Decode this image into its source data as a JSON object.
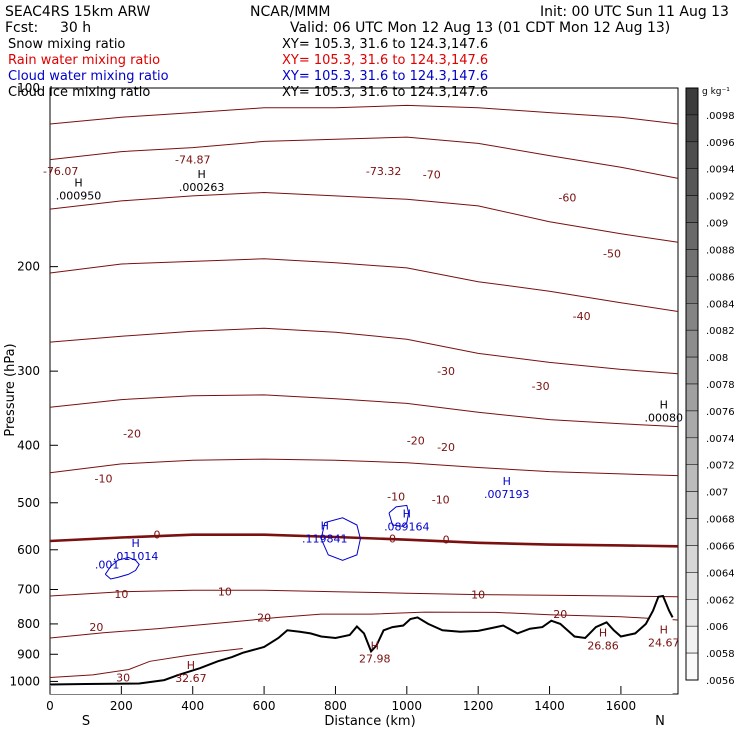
{
  "header": {
    "model": "SEAC4RS 15km ARW",
    "org": "NCAR/MMM",
    "init": "Init: 00 UTC Sun 11 Aug 13",
    "fcst_label": "Fcst:",
    "fcst_value": "30 h",
    "valid": "Valid: 06 UTC Mon 12 Aug 13 (01 CDT Mon 12 Aug 13)"
  },
  "fields": [
    {
      "label": "Snow mixing ratio",
      "xy": "XY= 105.3, 31.6 to 124.3,147.6",
      "color": "#000000"
    },
    {
      "label": "Rain water mixing ratio",
      "xy": "XY= 105.3, 31.6 to 124.3,147.6",
      "color": "#e00000"
    },
    {
      "label": "Cloud water mixing ratio",
      "xy": "XY= 105.3, 31.6 to 124.3,147.6",
      "color": "#0000cc"
    },
    {
      "label": "Cloud ice mixing ratio",
      "xy": "XY= 105.3, 31.6 to 124.3,147.6",
      "color": "#000000"
    }
  ],
  "colors": {
    "temperature": "#7a1010",
    "cloud_water": "#0000cc",
    "terrain": "#000000"
  },
  "chart_data": {
    "type": "line",
    "xlabel": "Distance (km)",
    "ylabel": "Pressure (hPa)",
    "xlim": [
      0,
      1760
    ],
    "ylim": [
      1050,
      100
    ],
    "x_ticks": [
      0,
      200,
      400,
      600,
      800,
      1000,
      1200,
      1400,
      1600
    ],
    "y_ticks": [
      100,
      200,
      300,
      400,
      500,
      600,
      700,
      800,
      900,
      1000
    ],
    "y_tick_labels": [
      "100",
      "200",
      "300",
      "400",
      "500",
      "600",
      "700",
      "800",
      "900",
      "1000"
    ],
    "endpoints": {
      "left": "S",
      "right": "N"
    },
    "colorbar": {
      "unit": "g kg⁻¹",
      "levels": [
        0.0098,
        0.0096,
        0.0094,
        0.0092,
        0.009,
        0.0088,
        0.0086,
        0.0084,
        0.0082,
        0.008,
        0.0078,
        0.0076,
        0.0074,
        0.0072,
        0.007,
        0.0068,
        0.0066,
        0.0064,
        0.0062,
        0.006,
        0.0058,
        0.0056
      ],
      "labels": [
        ".0098",
        ".0096",
        ".0094",
        ".0092",
        ".009",
        ".0088",
        ".0086",
        ".0084",
        ".0082",
        ".008",
        ".0078",
        ".0076",
        ".0074",
        ".0072",
        ".007",
        ".0068",
        ".0066",
        ".0064",
        ".0062",
        ".006",
        ".0058",
        ".0056"
      ],
      "labeled": [
        ".0098",
        ".0096",
        ".0094",
        ".0092",
        ".009",
        ".0088",
        ".0086",
        ".0084",
        ".0082",
        ".008",
        ".0078",
        ".0076",
        ".0074",
        ".0072",
        ".007",
        ".0068",
        ".0066",
        ".0064",
        ".0062",
        ".006",
        ".0058",
        ".0056"
      ]
    },
    "terrain": [
      [
        0,
        1012
      ],
      [
        100,
        1010
      ],
      [
        250,
        1008
      ],
      [
        320,
        995
      ],
      [
        360,
        975
      ],
      [
        420,
        950
      ],
      [
        470,
        925
      ],
      [
        510,
        910
      ],
      [
        540,
        895
      ],
      [
        600,
        875
      ],
      [
        640,
        845
      ],
      [
        665,
        820
      ],
      [
        700,
        825
      ],
      [
        730,
        830
      ],
      [
        760,
        840
      ],
      [
        800,
        845
      ],
      [
        840,
        835
      ],
      [
        860,
        808
      ],
      [
        880,
        830
      ],
      [
        900,
        890
      ],
      [
        915,
        870
      ],
      [
        935,
        820
      ],
      [
        960,
        810
      ],
      [
        990,
        805
      ],
      [
        1010,
        785
      ],
      [
        1030,
        780
      ],
      [
        1060,
        800
      ],
      [
        1100,
        820
      ],
      [
        1150,
        825
      ],
      [
        1200,
        822
      ],
      [
        1250,
        810
      ],
      [
        1270,
        805
      ],
      [
        1310,
        830
      ],
      [
        1345,
        815
      ],
      [
        1380,
        810
      ],
      [
        1405,
        790
      ],
      [
        1430,
        800
      ],
      [
        1470,
        840
      ],
      [
        1500,
        845
      ],
      [
        1530,
        810
      ],
      [
        1560,
        795
      ],
      [
        1580,
        820
      ],
      [
        1600,
        840
      ],
      [
        1640,
        830
      ],
      [
        1660,
        810
      ],
      [
        1670,
        800
      ],
      [
        1690,
        760
      ],
      [
        1705,
        720
      ],
      [
        1718,
        718
      ],
      [
        1735,
        760
      ],
      [
        1745,
        780
      ]
    ],
    "temperature_isotherms": [
      {
        "label": "-70",
        "points": [
          [
            0,
            115
          ],
          [
            200,
            112
          ],
          [
            400,
            110
          ],
          [
            600,
            108
          ],
          [
            800,
            108
          ],
          [
            1000,
            107
          ],
          [
            1200,
            108
          ],
          [
            1400,
            110
          ],
          [
            1600,
            112
          ],
          [
            1760,
            115
          ]
        ]
      },
      {
        "label": "-60",
        "points": [
          [
            0,
            132
          ],
          [
            200,
            128
          ],
          [
            400,
            126
          ],
          [
            600,
            123
          ],
          [
            800,
            122
          ],
          [
            1000,
            121
          ],
          [
            1200,
            124
          ],
          [
            1400,
            130
          ],
          [
            1600,
            136
          ],
          [
            1760,
            142
          ]
        ]
      },
      {
        "label": "-50",
        "points": [
          [
            0,
            160
          ],
          [
            200,
            155
          ],
          [
            400,
            152
          ],
          [
            600,
            150
          ],
          [
            800,
            152
          ],
          [
            1000,
            154
          ],
          [
            1200,
            158
          ],
          [
            1400,
            168
          ],
          [
            1600,
            176
          ],
          [
            1760,
            182
          ]
        ]
      },
      {
        "label": "-40",
        "points": [
          [
            0,
            205
          ],
          [
            200,
            198
          ],
          [
            400,
            196
          ],
          [
            600,
            194
          ],
          [
            800,
            197
          ],
          [
            1000,
            201
          ],
          [
            1200,
            212
          ],
          [
            1400,
            220
          ],
          [
            1600,
            230
          ],
          [
            1760,
            238
          ]
        ]
      },
      {
        "label": "-30",
        "points": [
          [
            0,
            268
          ],
          [
            200,
            262
          ],
          [
            400,
            257
          ],
          [
            600,
            254
          ],
          [
            800,
            258
          ],
          [
            1000,
            265
          ],
          [
            1200,
            280
          ],
          [
            1400,
            290
          ],
          [
            1600,
            298
          ],
          [
            1760,
            303
          ]
        ]
      },
      {
        "label": "-20",
        "points": [
          [
            0,
            345
          ],
          [
            200,
            335
          ],
          [
            400,
            330
          ],
          [
            600,
            329
          ],
          [
            800,
            334
          ],
          [
            1000,
            340
          ],
          [
            1200,
            352
          ],
          [
            1400,
            362
          ],
          [
            1600,
            368
          ],
          [
            1760,
            372
          ]
        ]
      },
      {
        "label": "-10",
        "points": [
          [
            0,
            445
          ],
          [
            200,
            430
          ],
          [
            400,
            424
          ],
          [
            600,
            422
          ],
          [
            800,
            424
          ],
          [
            1000,
            428
          ],
          [
            1200,
            436
          ],
          [
            1400,
            443
          ],
          [
            1600,
            447
          ],
          [
            1760,
            450
          ]
        ]
      },
      {
        "label": "0",
        "points": [
          [
            0,
            580
          ],
          [
            200,
            572
          ],
          [
            400,
            566
          ],
          [
            600,
            566
          ],
          [
            800,
            571
          ],
          [
            1000,
            577
          ],
          [
            1200,
            584
          ],
          [
            1400,
            588
          ],
          [
            1600,
            590
          ],
          [
            1760,
            592
          ]
        ],
        "bold": true
      },
      {
        "label": "10",
        "points": [
          [
            0,
            718
          ],
          [
            200,
            706
          ],
          [
            400,
            702
          ],
          [
            600,
            702
          ],
          [
            800,
            706
          ],
          [
            1000,
            710
          ],
          [
            1200,
            714
          ],
          [
            1400,
            716
          ],
          [
            1600,
            718
          ],
          [
            1760,
            720
          ]
        ]
      },
      {
        "label": "20",
        "points": [
          [
            0,
            845
          ],
          [
            150,
            828
          ],
          [
            300,
            815
          ],
          [
            500,
            795
          ],
          [
            640,
            780
          ],
          [
            760,
            770
          ],
          [
            900,
            770
          ],
          [
            1050,
            764
          ],
          [
            1250,
            765
          ],
          [
            1400,
            772
          ],
          [
            1600,
            778
          ],
          [
            1760,
            788
          ]
        ]
      },
      {
        "label": "30",
        "points": [
          [
            0,
            985
          ],
          [
            120,
            975
          ],
          [
            220,
            955
          ],
          [
            280,
            925
          ],
          [
            380,
            905
          ],
          [
            470,
            890
          ],
          [
            540,
            880
          ]
        ]
      }
    ],
    "isotherm_labels": [
      {
        "text": "-76.07",
        "x": 30,
        "p": 138
      },
      {
        "text": "-74.87",
        "x": 400,
        "p": 132
      },
      {
        "text": "-73.32",
        "x": 935,
        "p": 138
      },
      {
        "text": "-70",
        "x": 1070,
        "p": 140
      },
      {
        "text": "-60",
        "x": 1450,
        "p": 153
      },
      {
        "text": "-50",
        "x": 1575,
        "p": 190
      },
      {
        "text": "-40",
        "x": 1490,
        "p": 242
      },
      {
        "text": "-30",
        "x": 1110,
        "p": 300
      },
      {
        "text": "-30",
        "x": 1375,
        "p": 318
      },
      {
        "text": "-20",
        "x": 230,
        "p": 382
      },
      {
        "text": "-20",
        "x": 1025,
        "p": 393
      },
      {
        "text": "-20",
        "x": 1110,
        "p": 403
      },
      {
        "text": "-10",
        "x": 150,
        "p": 455
      },
      {
        "text": "-10",
        "x": 970,
        "p": 488
      },
      {
        "text": "-10",
        "x": 1095,
        "p": 494
      },
      {
        "text": "0",
        "x": 300,
        "p": 565
      },
      {
        "text": "0",
        "x": 960,
        "p": 574
      },
      {
        "text": "0",
        "x": 1110,
        "p": 577
      },
      {
        "text": "10",
        "x": 200,
        "p": 713
      },
      {
        "text": "10",
        "x": 490,
        "p": 705
      },
      {
        "text": "10",
        "x": 1200,
        "p": 714
      },
      {
        "text": "20",
        "x": 130,
        "p": 810
      },
      {
        "text": "20",
        "x": 600,
        "p": 780
      },
      {
        "text": "20",
        "x": 1430,
        "p": 770
      },
      {
        "text": "30",
        "x": 205,
        "p": 985
      }
    ],
    "maxima": [
      {
        "mark": "H",
        "value": ".000950",
        "x": 80,
        "p": 150,
        "color": "#000000"
      },
      {
        "mark": "H",
        "value": ".000263",
        "x": 425,
        "p": 145,
        "color": "#000000"
      },
      {
        "mark": "H",
        "value": ".00080",
        "x": 1720,
        "p": 355,
        "color": "#000000"
      },
      {
        "mark": "H",
        "value": ".007193",
        "x": 1280,
        "p": 478,
        "color": "#0000cc"
      },
      {
        "mark": "H",
        "value": ".089164",
        "x": 1000,
        "p": 542,
        "color": "#0000cc"
      },
      {
        "mark": "H",
        "value": ".119841",
        "x": 770,
        "p": 568,
        "color": "#0000cc"
      },
      {
        "mark": "H",
        "value": ".011014",
        "x": 240,
        "p": 607,
        "color": "#0000cc"
      },
      {
        "mark": ".001",
        "value": "",
        "x": 160,
        "p": 645,
        "color": "#0000cc"
      },
      {
        "mark": "H",
        "value": "27.98",
        "x": 910,
        "p": 905,
        "color": "#7a1010"
      },
      {
        "mark": "H",
        "value": "32.67",
        "x": 395,
        "p": 975,
        "color": "#7a1010"
      },
      {
        "mark": "H",
        "value": "26.86",
        "x": 1550,
        "p": 860,
        "color": "#7a1010"
      },
      {
        "mark": "H",
        "value": "24.67",
        "x": 1720,
        "p": 850,
        "color": "#7a1010"
      }
    ],
    "cloud_water_contours": [
      [
        [
          770,
          540
        ],
        [
          820,
          530
        ],
        [
          860,
          545
        ],
        [
          870,
          575
        ],
        [
          860,
          612
        ],
        [
          820,
          625
        ],
        [
          780,
          612
        ],
        [
          760,
          575
        ],
        [
          770,
          540
        ]
      ],
      [
        [
          950,
          520
        ],
        [
          970,
          508
        ],
        [
          1000,
          505
        ],
        [
          1005,
          520
        ],
        [
          1000,
          540
        ],
        [
          990,
          548
        ],
        [
          960,
          545
        ],
        [
          950,
          520
        ]
      ],
      [
        [
          155,
          660
        ],
        [
          170,
          640
        ],
        [
          190,
          625
        ],
        [
          220,
          618
        ],
        [
          240,
          625
        ],
        [
          250,
          635
        ],
        [
          240,
          650
        ],
        [
          220,
          660
        ],
        [
          190,
          668
        ],
        [
          170,
          672
        ],
        [
          155,
          660
        ]
      ]
    ]
  }
}
